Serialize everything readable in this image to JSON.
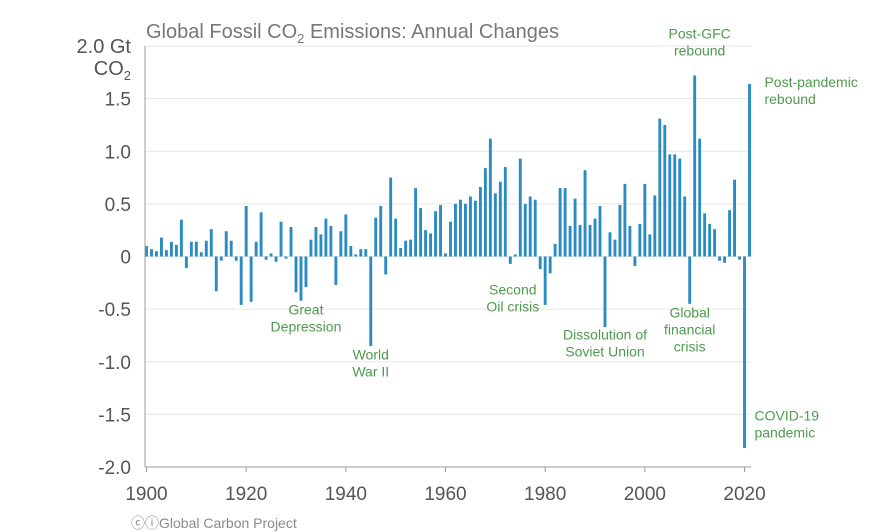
{
  "chart_data": {
    "type": "bar",
    "title_prefix": "Global Fossil CO",
    "title_sub": "2",
    "title_suffix": " Emissions: Annual Changes",
    "ylabel_line1": "2.0 Gt",
    "ylabel_line2_prefix": "CO",
    "ylabel_line2_sub": "2",
    "ylim": [
      -2.0,
      2.0
    ],
    "xlim": [
      1900,
      2021
    ],
    "y_ticks": [
      {
        "value": 1.5,
        "label": "1.5"
      },
      {
        "value": 1.0,
        "label": "1.0"
      },
      {
        "value": 0.5,
        "label": "0.5"
      },
      {
        "value": 0,
        "label": "0"
      },
      {
        "value": -0.5,
        "label": "-0.5"
      },
      {
        "value": -1.0,
        "label": "-1.0"
      },
      {
        "value": -1.5,
        "label": "-1.5"
      },
      {
        "value": -2.0,
        "label": "-2.0"
      }
    ],
    "x_ticks": [
      {
        "value": 1900,
        "label": "1900"
      },
      {
        "value": 1920,
        "label": "1920"
      },
      {
        "value": 1940,
        "label": "1940"
      },
      {
        "value": 1960,
        "label": "1960"
      },
      {
        "value": 1980,
        "label": "1980"
      },
      {
        "value": 2000,
        "label": "2000"
      },
      {
        "value": 2020,
        "label": "2020"
      }
    ],
    "grid": true,
    "bar_color": "#2b8cc4",
    "annotation_color": "#4e9a4e",
    "years": [
      1900,
      1901,
      1902,
      1903,
      1904,
      1905,
      1906,
      1907,
      1908,
      1909,
      1910,
      1911,
      1912,
      1913,
      1914,
      1915,
      1916,
      1917,
      1918,
      1919,
      1920,
      1921,
      1922,
      1923,
      1924,
      1925,
      1926,
      1927,
      1928,
      1929,
      1930,
      1931,
      1932,
      1933,
      1934,
      1935,
      1936,
      1937,
      1938,
      1939,
      1940,
      1941,
      1942,
      1943,
      1944,
      1945,
      1946,
      1947,
      1948,
      1949,
      1950,
      1951,
      1952,
      1953,
      1954,
      1955,
      1956,
      1957,
      1958,
      1959,
      1960,
      1961,
      1962,
      1963,
      1964,
      1965,
      1966,
      1967,
      1968,
      1969,
      1970,
      1971,
      1972,
      1973,
      1974,
      1975,
      1976,
      1977,
      1978,
      1979,
      1980,
      1981,
      1982,
      1983,
      1984,
      1985,
      1986,
      1987,
      1988,
      1989,
      1990,
      1991,
      1992,
      1993,
      1994,
      1995,
      1996,
      1997,
      1998,
      1999,
      2000,
      2001,
      2002,
      2003,
      2004,
      2005,
      2006,
      2007,
      2008,
      2009,
      2010,
      2011,
      2012,
      2013,
      2014,
      2015,
      2016,
      2017,
      2018,
      2019,
      2020,
      2021
    ],
    "values": [
      0.1,
      0.07,
      0.05,
      0.18,
      0.06,
      0.14,
      0.11,
      0.35,
      -0.11,
      0.14,
      0.14,
      0.04,
      0.15,
      0.26,
      -0.33,
      -0.04,
      0.24,
      0.15,
      -0.04,
      -0.46,
      0.48,
      -0.43,
      0.14,
      0.42,
      -0.03,
      0.03,
      -0.05,
      0.33,
      -0.02,
      0.28,
      -0.34,
      -0.42,
      -0.29,
      0.16,
      0.28,
      0.21,
      0.36,
      0.29,
      -0.27,
      0.24,
      0.4,
      0.1,
      0.02,
      0.07,
      0.07,
      -0.85,
      0.37,
      0.48,
      -0.17,
      0.75,
      0.36,
      0.08,
      0.15,
      0.16,
      0.65,
      0.46,
      0.25,
      0.22,
      0.43,
      0.49,
      0.03,
      0.33,
      0.5,
      0.54,
      0.5,
      0.57,
      0.53,
      0.66,
      0.84,
      1.12,
      0.6,
      0.71,
      0.85,
      -0.07,
      0.02,
      0.93,
      0.5,
      0.57,
      0.54,
      -0.12,
      -0.46,
      -0.16,
      0.12,
      0.65,
      0.65,
      0.29,
      0.55,
      0.3,
      0.82,
      0.3,
      0.36,
      0.48,
      -0.67,
      0.23,
      0.16,
      0.49,
      0.69,
      0.29,
      -0.09,
      0.31,
      0.69,
      0.21,
      0.58,
      1.31,
      1.25,
      0.97,
      0.97,
      0.93,
      0.57,
      -0.45,
      1.72,
      1.12,
      0.41,
      0.31,
      0.26,
      -0.04,
      -0.06,
      0.44,
      0.73,
      -0.03,
      -1.82,
      1.64
    ],
    "annotations": [
      {
        "lines": [
          "Great",
          "Depression"
        ],
        "x": 1932,
        "y": -0.55,
        "anchor": "middle"
      },
      {
        "lines": [
          "World",
          "War II"
        ],
        "x": 1945,
        "y": -0.98,
        "anchor": "middle"
      },
      {
        "lines": [
          "Second",
          "Oil crisis"
        ],
        "x": 1973.5,
        "y": -0.36,
        "anchor": "middle"
      },
      {
        "lines": [
          "Dissolution of",
          "Soviet Union"
        ],
        "x": 1992,
        "y": -0.79,
        "anchor": "middle"
      },
      {
        "lines": [
          "Global",
          "financial",
          "crisis"
        ],
        "x": 2009,
        "y": -0.58,
        "anchor": "middle"
      },
      {
        "lines": [
          "Post-GFC",
          "rebound"
        ],
        "x": 2011,
        "y": 2.07,
        "anchor": "middle"
      },
      {
        "lines": [
          "Post-pandemic",
          "rebound"
        ],
        "x": 2024,
        "y": 1.61,
        "anchor": "start"
      },
      {
        "lines": [
          "COVID-19",
          "pandemic"
        ],
        "x": 2022,
        "y": -1.56,
        "anchor": "start"
      }
    ]
  },
  "footer": {
    "icon": "creative-commons-icon",
    "icon_glyph": "ⓒⓘ",
    "text": "Global Carbon Project"
  }
}
